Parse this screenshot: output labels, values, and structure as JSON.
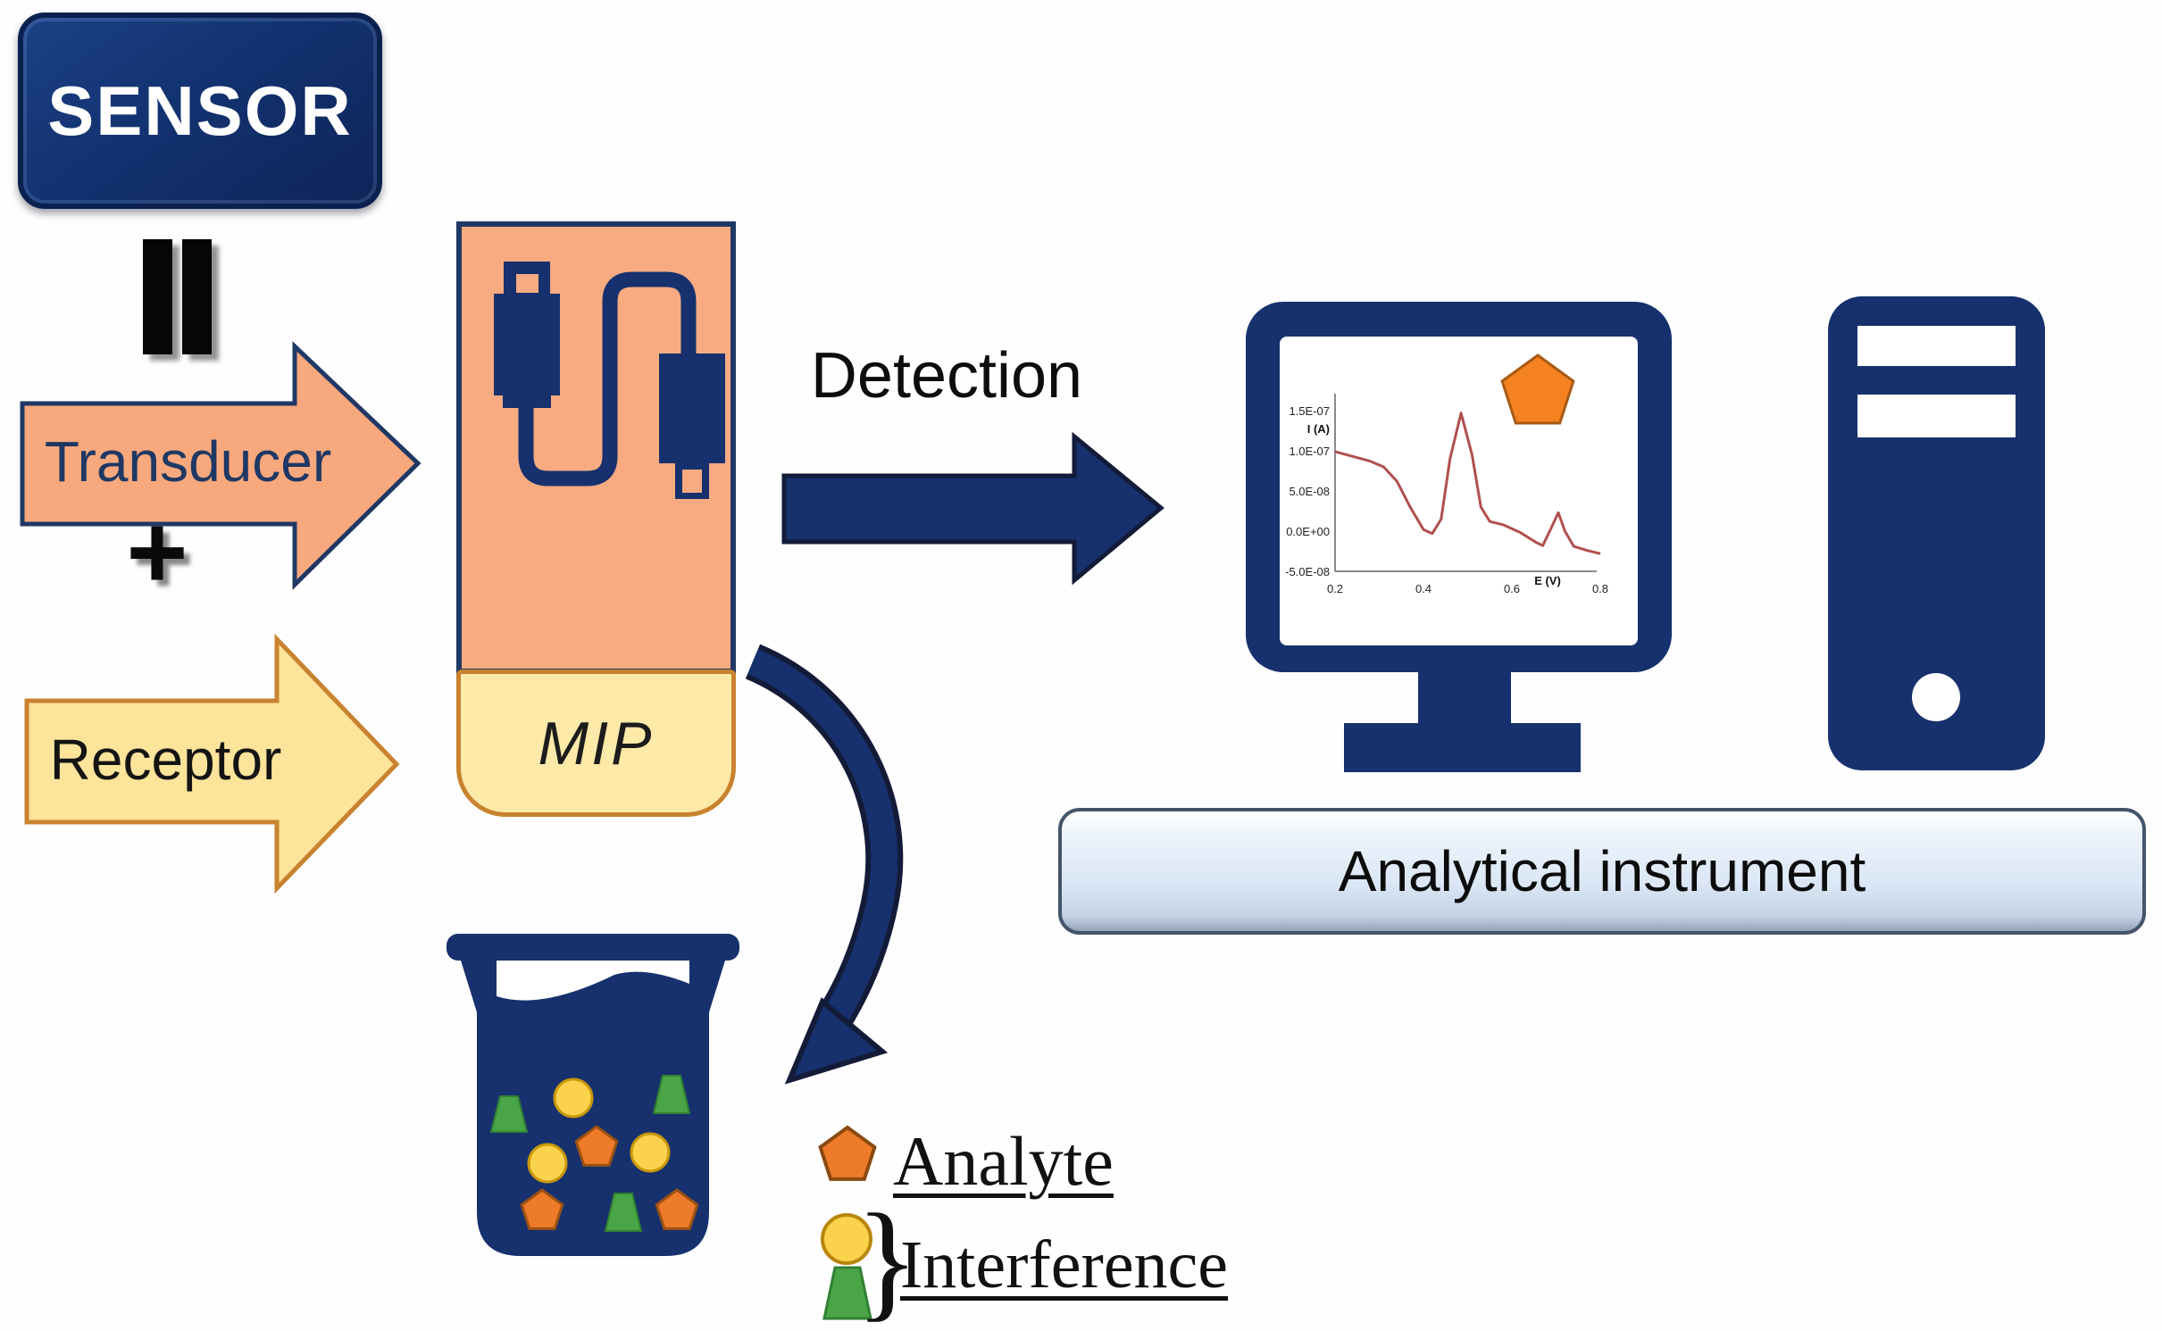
{
  "labels": {
    "sensor": "SENSOR",
    "transducer": "Transducer",
    "plus": "+",
    "receptor": "Receptor",
    "mip": "MIP",
    "detection": "Detection",
    "analytical_instrument": "Analytical instrument"
  },
  "legend": {
    "analyte": {
      "label": "Analyte",
      "icon": "orange-pentagon"
    },
    "interference": {
      "label": "Interference",
      "brace": "}",
      "icons": [
        "yellow-circle",
        "green-triangle"
      ]
    }
  },
  "icons": {
    "equals_bars": "equivalence double-bar symbol",
    "usb_cable": "USB cable connecting two plugs (transducer electrode)",
    "monitor": "desktop monitor showing voltammogram",
    "tower": "computer tower",
    "beaker": "beaker containing analyte and interference molecules",
    "curved_arrow": "curved arrow from MIP sensor to sample beaker",
    "detection_arrow": "arrow from sensor to analytical instrument",
    "screen_pentagon": "orange analyte pentagon on monitor screen"
  },
  "beaker": {
    "contents": [
      {
        "shape": "green-triangle",
        "count": 3
      },
      {
        "shape": "yellow-circle",
        "count": 3
      },
      {
        "shape": "orange-pentagon",
        "count": 3
      }
    ]
  },
  "colors": {
    "navy": "#16316d",
    "outline_dark": "#131b38",
    "salmon_arrow": "#f8a87d",
    "salmon_border": "#1f3864",
    "yellow_arrow": "#fce49a",
    "yellow_border": "#c9822f",
    "mip_top": "#f8ab81",
    "mip_bottom": "#fde9a8",
    "orange_pentagon": "#ee7b2a",
    "yellow_circle": "#fbd24b",
    "green_triangle": "#4aa546",
    "curve_red": "#b0504f",
    "instrument_bar": "#dbe7f6"
  },
  "chart_data": {
    "type": "line",
    "title": "",
    "xlabel": "E (V)",
    "ylabel": "I (A)",
    "xlim": [
      0.2,
      0.8
    ],
    "ylim": [
      -5e-08,
      1.5e-07
    ],
    "grid": false,
    "legend_position": "none",
    "x_ticks": [
      "0.2",
      "0.4",
      "0.6",
      "0.8"
    ],
    "x_tick_values": [
      0.2,
      0.4,
      0.6,
      0.8
    ],
    "y_ticks": [
      "1.5E-07",
      "1.0E-07",
      "5.0E-08",
      "0.0E+00",
      "-5.0E-08"
    ],
    "y_tick_values": [
      1.5e-07,
      1e-07,
      5e-08,
      0.0,
      -5e-08
    ],
    "series": [
      {
        "name": "voltammogram",
        "color": "#b0504f",
        "points": [
          [
            0.2,
            9.9e-08
          ],
          [
            0.24,
            9.3e-08
          ],
          [
            0.28,
            8.7e-08
          ],
          [
            0.31,
            8e-08
          ],
          [
            0.34,
            6.2e-08
          ],
          [
            0.37,
            3e-08
          ],
          [
            0.4,
            2e-09
          ],
          [
            0.42,
            -3e-09
          ],
          [
            0.44,
            1.5e-08
          ],
          [
            0.46,
            9e-08
          ],
          [
            0.485,
            1.47e-07
          ],
          [
            0.51,
            9.5e-08
          ],
          [
            0.53,
            3e-08
          ],
          [
            0.55,
            1.2e-08
          ],
          [
            0.58,
            8e-09
          ],
          [
            0.62,
            -2e-09
          ],
          [
            0.655,
            -1.4e-08
          ],
          [
            0.67,
            -1.8e-08
          ],
          [
            0.69,
            5e-09
          ],
          [
            0.705,
            2.3e-08
          ],
          [
            0.72,
            0.0
          ],
          [
            0.74,
            -1.9e-08
          ],
          [
            0.77,
            -2.4e-08
          ],
          [
            0.8,
            -2.8e-08
          ]
        ]
      }
    ]
  }
}
